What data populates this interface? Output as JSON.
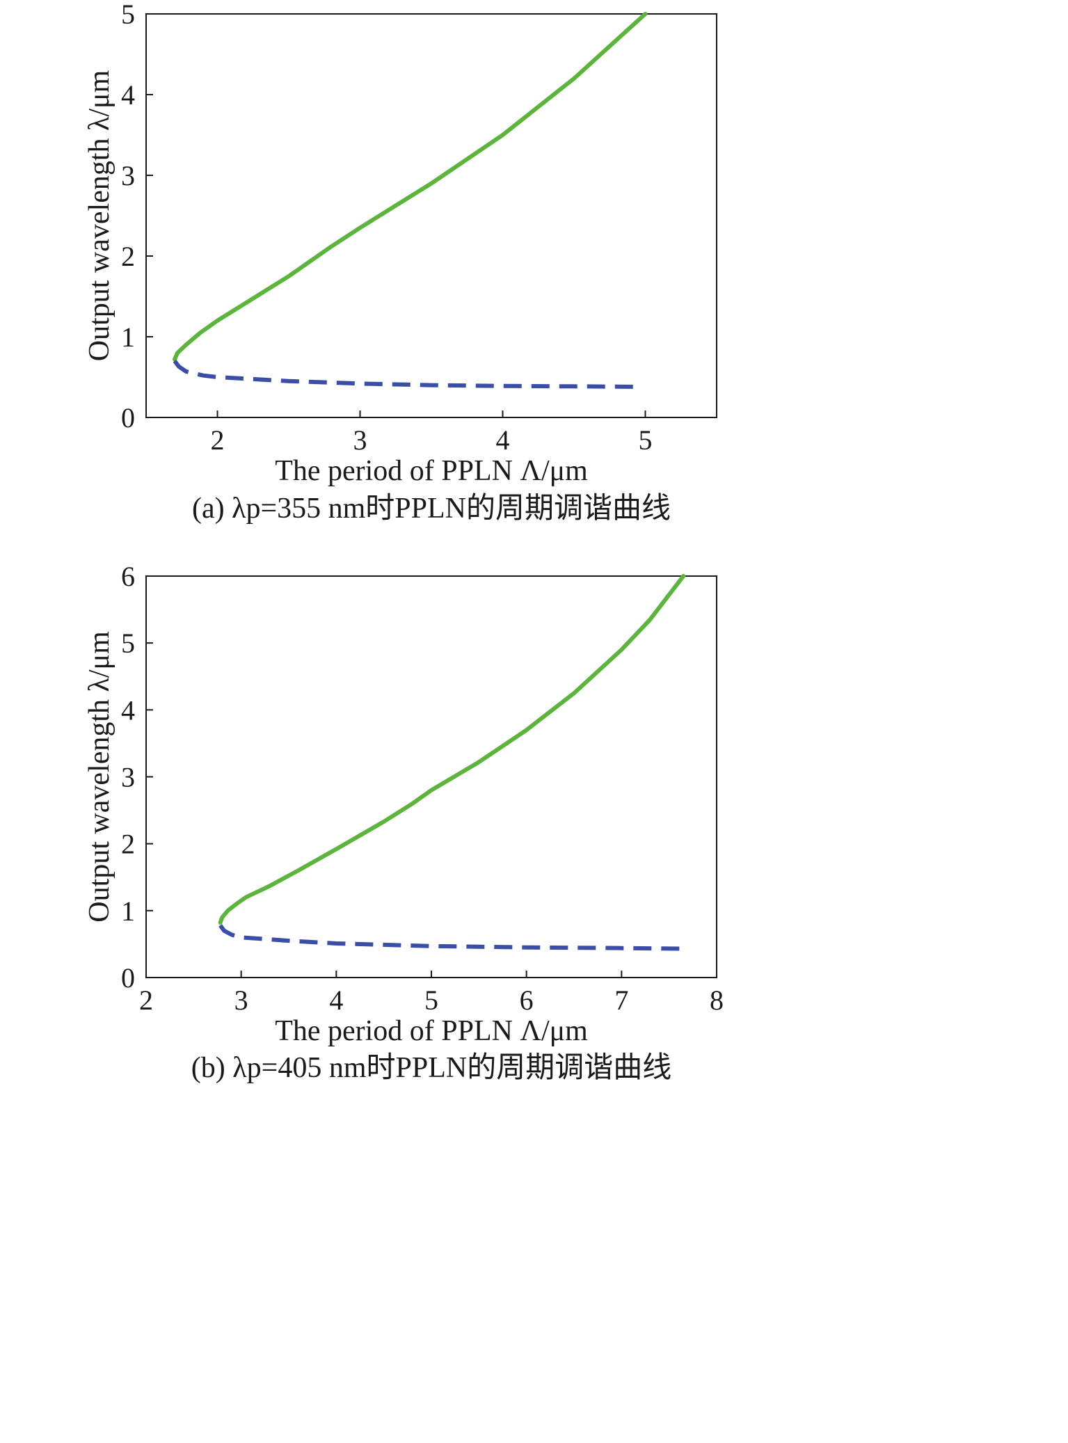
{
  "chart_data": [
    {
      "type": "line",
      "xlabel": "The period of PPLN Λ/μm",
      "ylabel": "Output wavelength λ/μm",
      "caption": "(a) λp=355 nm时PPLN的周期调谐曲线",
      "xlim": [
        1.5,
        5.5
      ],
      "ylim": [
        0,
        5
      ],
      "xticks": [
        "2",
        "3",
        "4",
        "5"
      ],
      "xtick_values": [
        2,
        3,
        4,
        5
      ],
      "yticks": [
        "0",
        "1",
        "2",
        "3",
        "4",
        "5"
      ],
      "ytick_values": [
        0,
        1,
        2,
        3,
        4,
        5
      ],
      "grid": false,
      "series": [
        {
          "style": "solid",
          "color": "#5cb43c",
          "x": [
            1.7,
            1.72,
            1.78,
            1.88,
            2.0,
            2.2,
            2.5,
            2.8,
            3.0,
            3.5,
            4.0,
            4.5,
            5.0
          ],
          "y": [
            0.72,
            0.8,
            0.9,
            1.05,
            1.2,
            1.42,
            1.75,
            2.12,
            2.35,
            2.9,
            3.5,
            4.2,
            5.0
          ]
        },
        {
          "style": "dashed",
          "color": "#3a4ea8",
          "x": [
            1.7,
            1.73,
            1.78,
            1.9,
            2.0,
            2.5,
            3.0,
            3.5,
            4.0,
            4.5,
            4.95
          ],
          "y": [
            0.7,
            0.63,
            0.57,
            0.52,
            0.5,
            0.45,
            0.42,
            0.4,
            0.39,
            0.385,
            0.38
          ]
        }
      ]
    },
    {
      "type": "line",
      "xlabel": "The period of PPLN Λ/μm",
      "ylabel": "Output wavelength λ/μm",
      "caption": "(b) λp=405 nm时PPLN的周期调谐曲线",
      "xlim": [
        2,
        8
      ],
      "ylim": [
        0,
        6
      ],
      "xticks": [
        "2",
        "3",
        "4",
        "5",
        "6",
        "7",
        "8"
      ],
      "xtick_values": [
        2,
        3,
        4,
        5,
        6,
        7,
        8
      ],
      "yticks": [
        "0",
        "1",
        "2",
        "3",
        "4",
        "5",
        "6"
      ],
      "ytick_values": [
        0,
        1,
        2,
        3,
        4,
        5,
        6
      ],
      "grid": false,
      "series": [
        {
          "style": "solid",
          "color": "#5cb43c",
          "x": [
            2.78,
            2.8,
            2.86,
            2.95,
            3.05,
            3.3,
            3.6,
            4.0,
            4.5,
            4.8,
            5.0,
            5.5,
            6.0,
            6.5,
            7.0,
            7.3,
            7.65
          ],
          "y": [
            0.82,
            0.9,
            1.0,
            1.1,
            1.2,
            1.37,
            1.6,
            1.92,
            2.33,
            2.6,
            2.8,
            3.22,
            3.7,
            4.25,
            4.9,
            5.35,
            6.0
          ]
        },
        {
          "style": "dashed",
          "color": "#3a4ea8",
          "x": [
            2.78,
            2.82,
            2.9,
            3.0,
            3.5,
            4.0,
            5.0,
            6.0,
            7.0,
            7.65
          ],
          "y": [
            0.78,
            0.7,
            0.64,
            0.6,
            0.55,
            0.51,
            0.47,
            0.45,
            0.44,
            0.43
          ]
        }
      ]
    }
  ]
}
